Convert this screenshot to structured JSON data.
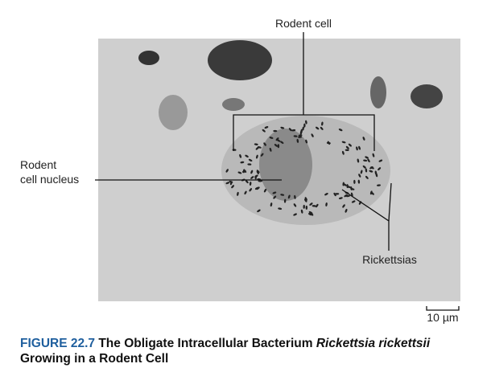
{
  "labels": {
    "rodent_cell": "Rodent cell",
    "nucleus_line1": "Rodent",
    "nucleus_line2": "cell nucleus",
    "rickettsias": "Rickettsias",
    "scale_bar": "10 µm"
  },
  "caption": {
    "figure_number": "FIGURE 22.7",
    "parts": [
      "The Obligate Intracellular Bacterium",
      "Rickettsia rickettsii",
      "Growing in a Rodent Cell"
    ]
  }
}
